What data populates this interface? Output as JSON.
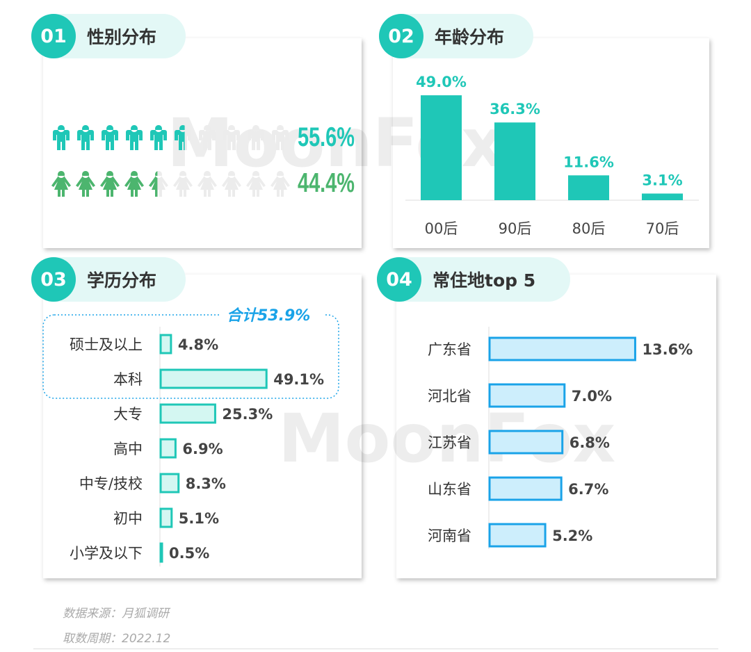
{
  "panels": [
    {
      "num": "01",
      "title": "性别分布"
    },
    {
      "num": "02",
      "title": "年龄分布"
    },
    {
      "num": "03",
      "title": "学历分布"
    },
    {
      "num": "04",
      "title": "常住地top 5"
    }
  ],
  "watermark": "MoonFox",
  "colors": {
    "teal": "#1fc7b7",
    "green": "#4cb56e",
    "blue": "#1aa3e8",
    "bar_fill_teal": "#d4f7f2",
    "bar_fill_blue": "#cdeefc",
    "total_label": "#1aa3e8"
  },
  "chart_data": [
    {
      "type": "pictogram",
      "icons_per_row": 10,
      "series": [
        {
          "icon": "male-icon",
          "value": 55.6,
          "label": "55.6%",
          "color": "#1fc7b7"
        },
        {
          "icon": "female-icon",
          "value": 44.4,
          "label": "44.4%",
          "color": "#4cb56e"
        }
      ]
    },
    {
      "type": "bar",
      "categories": [
        "00后",
        "90后",
        "80后",
        "70后"
      ],
      "values": [
        49.0,
        36.3,
        11.6,
        3.1
      ],
      "labels": [
        "49.0%",
        "36.3%",
        "11.6%",
        "3.1%"
      ],
      "color": "#1fc7b7"
    },
    {
      "type": "bar",
      "orientation": "horizontal",
      "categories": [
        "硕士及以上",
        "本科",
        "大专",
        "高中",
        "中专/技校",
        "初中",
        "小学及以下"
      ],
      "values": [
        4.8,
        49.1,
        25.3,
        6.9,
        8.3,
        5.1,
        0.5
      ],
      "labels": [
        "4.8%",
        "49.1%",
        "25.3%",
        "6.9%",
        "8.3%",
        "5.1%",
        "0.5%"
      ],
      "annotation": "合计53.9%"
    },
    {
      "type": "bar",
      "orientation": "horizontal",
      "categories": [
        "广东省",
        "河北省",
        "江苏省",
        "山东省",
        "河南省"
      ],
      "values": [
        13.6,
        7.0,
        6.8,
        6.7,
        5.2
      ],
      "labels": [
        "13.6%",
        "7.0%",
        "6.8%",
        "6.7%",
        "5.2%"
      ]
    }
  ],
  "footer": {
    "source": "数据来源：月狐调研",
    "period": "取数周期：2022.12"
  }
}
